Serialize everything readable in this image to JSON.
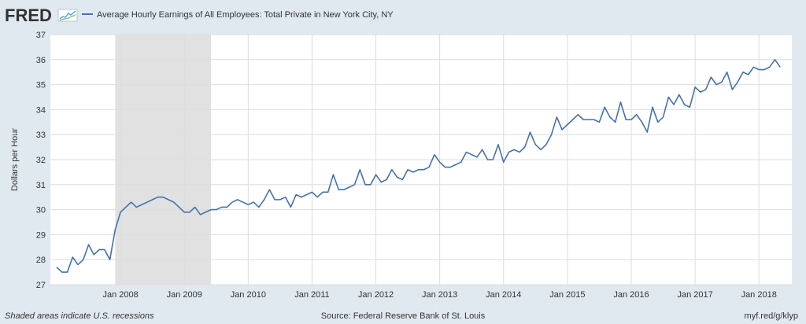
{
  "header": {
    "logo_text": "FRED",
    "series_title": "Average Hourly Earnings of All Employees: Total Private in New York City, NY"
  },
  "footer": {
    "note": "Shaded areas indicate U.S. recessions",
    "source": "Source: Federal Reserve Bank of St. Louis",
    "short_url": "myf.red/g/klyp"
  },
  "colors": {
    "background": "#e1e9f0",
    "plot_background": "#ffffff",
    "series_line": "#4572a7",
    "recession_shade": "#e1e1e1",
    "grid": "#dddddd"
  },
  "chart_data": {
    "type": "line",
    "title": "Average Hourly Earnings of All Employees: Total Private in New York City, NY",
    "xlabel": "",
    "ylabel": "Dollars per Hour",
    "ylim": [
      27,
      37
    ],
    "yticks": [
      27,
      28,
      29,
      30,
      31,
      32,
      33,
      34,
      35,
      36,
      37
    ],
    "xlim": [
      "2007-01",
      "2018-06"
    ],
    "xticks": [
      "Jan 2008",
      "Jan 2009",
      "Jan 2010",
      "Jan 2011",
      "Jan 2012",
      "Jan 2013",
      "Jan 2014",
      "Jan 2015",
      "Jan 2016",
      "Jan 2017",
      "Jan 2018"
    ],
    "grid": true,
    "legend": "top",
    "recessions": [
      {
        "start": "2007-12",
        "end": "2009-06"
      }
    ],
    "series": [
      {
        "name": "Average Hourly Earnings of All Employees: Total Private in New York City, NY",
        "start": "2007-01",
        "frequency": "monthly",
        "values": [
          27.7,
          27.5,
          27.5,
          28.1,
          27.8,
          28.0,
          28.6,
          28.2,
          28.4,
          28.4,
          28.0,
          29.2,
          29.9,
          30.1,
          30.3,
          30.1,
          30.2,
          30.3,
          30.4,
          30.5,
          30.5,
          30.4,
          30.3,
          30.1,
          29.9,
          29.9,
          30.1,
          29.8,
          29.9,
          30.0,
          30.0,
          30.1,
          30.1,
          30.3,
          30.4,
          30.3,
          30.2,
          30.3,
          30.1,
          30.4,
          30.8,
          30.4,
          30.4,
          30.5,
          30.1,
          30.6,
          30.5,
          30.6,
          30.7,
          30.5,
          30.7,
          30.7,
          31.4,
          30.8,
          30.8,
          30.9,
          31.0,
          31.6,
          31.0,
          31.0,
          31.4,
          31.1,
          31.2,
          31.6,
          31.3,
          31.2,
          31.6,
          31.5,
          31.6,
          31.6,
          31.7,
          32.2,
          31.9,
          31.7,
          31.7,
          31.8,
          31.9,
          32.3,
          32.2,
          32.1,
          32.4,
          32.0,
          32.0,
          32.6,
          31.9,
          32.3,
          32.4,
          32.3,
          32.5,
          33.1,
          32.6,
          32.4,
          32.6,
          33.0,
          33.7,
          33.2,
          33.4,
          33.6,
          33.8,
          33.6,
          33.6,
          33.6,
          33.5,
          34.1,
          33.7,
          33.5,
          34.3,
          33.6,
          33.6,
          33.8,
          33.5,
          33.1,
          34.1,
          33.5,
          33.7,
          34.5,
          34.2,
          34.6,
          34.2,
          34.1,
          34.9,
          34.7,
          34.8,
          35.3,
          35.0,
          35.1,
          35.5,
          34.8,
          35.1,
          35.5,
          35.4,
          35.7,
          35.6,
          35.6,
          35.7,
          36.0,
          35.7
        ]
      }
    ]
  }
}
